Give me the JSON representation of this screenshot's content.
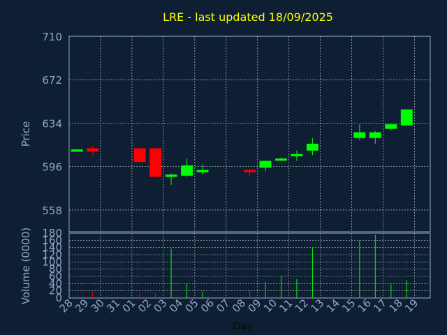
{
  "chart_data": [
    {
      "type": "candlestick",
      "title": "LRE - last updated 18/09/2025",
      "ylabel": "Price",
      "ylim": [
        539,
        710
      ],
      "yticks": [
        558,
        596,
        634,
        672,
        710
      ],
      "grid": true,
      "colors": {
        "up": "#00ff00",
        "down": "#ff0000",
        "title": "#ffff00",
        "axis_text": "#8fa8c8",
        "grid": "#c0c8d0",
        "frame": "#8fa8c8"
      },
      "x": [
        "28",
        "29",
        "30",
        "31",
        "01",
        "02",
        "03",
        "04",
        "05",
        "06",
        "07",
        "08",
        "09",
        "10",
        "11",
        "12",
        "13",
        "14",
        "15",
        "16",
        "17",
        "18",
        "19"
      ],
      "candles": [
        {
          "x": "28",
          "open": 609,
          "close": 611,
          "high": 611,
          "low": 609
        },
        {
          "x": "29",
          "open": 612,
          "close": 609,
          "high": 614,
          "low": 606
        },
        {
          "x": "01",
          "open": 612,
          "close": 600,
          "high": 612,
          "low": 600
        },
        {
          "x": "02",
          "open": 612,
          "close": 587,
          "high": 612,
          "low": 587
        },
        {
          "x": "03",
          "open": 587,
          "close": 589,
          "high": 590,
          "low": 580
        },
        {
          "x": "04",
          "open": 588,
          "close": 597,
          "high": 603,
          "low": 587
        },
        {
          "x": "05",
          "open": 591,
          "close": 593,
          "high": 598,
          "low": 589
        },
        {
          "x": "08",
          "open": 593,
          "close": 591,
          "high": 594,
          "low": 588
        },
        {
          "x": "09",
          "open": 595,
          "close": 601,
          "high": 601,
          "low": 592
        },
        {
          "x": "10",
          "open": 602,
          "close": 603,
          "high": 604,
          "low": 601
        },
        {
          "x": "11",
          "open": 605,
          "close": 607,
          "high": 610,
          "low": 601
        },
        {
          "x": "12",
          "open": 610,
          "close": 616,
          "high": 621,
          "low": 606
        },
        {
          "x": "15",
          "open": 621,
          "close": 626,
          "high": 633,
          "low": 619
        },
        {
          "x": "16",
          "open": 621,
          "close": 626,
          "high": 627,
          "low": 616
        },
        {
          "x": "17",
          "open": 629,
          "close": 633,
          "high": 633,
          "low": 628
        },
        {
          "x": "18",
          "open": 632,
          "close": 646,
          "high": 646,
          "low": 632
        }
      ]
    },
    {
      "type": "bar",
      "ylabel": "Volume (0000)",
      "xlabel": "Day",
      "ylim": [
        0,
        180
      ],
      "yticks": [
        0,
        20,
        40,
        60,
        80,
        100,
        120,
        140,
        160,
        180
      ],
      "grid": true,
      "categories": [
        "28",
        "29",
        "30",
        "31",
        "01",
        "02",
        "03",
        "04",
        "05",
        "06",
        "07",
        "08",
        "09",
        "10",
        "11",
        "12",
        "13",
        "14",
        "15",
        "16",
        "17",
        "18",
        "19"
      ],
      "bars": [
        {
          "x": "28",
          "value": 1,
          "direction": "up"
        },
        {
          "x": "29",
          "value": 18,
          "direction": "down"
        },
        {
          "x": "01",
          "value": 14,
          "direction": "down"
        },
        {
          "x": "02",
          "value": 14,
          "direction": "down"
        },
        {
          "x": "03",
          "value": 137,
          "direction": "up"
        },
        {
          "x": "04",
          "value": 39,
          "direction": "up"
        },
        {
          "x": "05",
          "value": 18,
          "direction": "up"
        },
        {
          "x": "08",
          "value": 20,
          "direction": "down"
        },
        {
          "x": "09",
          "value": 45,
          "direction": "up"
        },
        {
          "x": "10",
          "value": 62,
          "direction": "up"
        },
        {
          "x": "11",
          "value": 52,
          "direction": "up"
        },
        {
          "x": "12",
          "value": 140,
          "direction": "up"
        },
        {
          "x": "15",
          "value": 160,
          "direction": "up"
        },
        {
          "x": "16",
          "value": 175,
          "direction": "up"
        },
        {
          "x": "17",
          "value": 38,
          "direction": "up"
        },
        {
          "x": "18",
          "value": 50,
          "direction": "up"
        }
      ]
    }
  ]
}
